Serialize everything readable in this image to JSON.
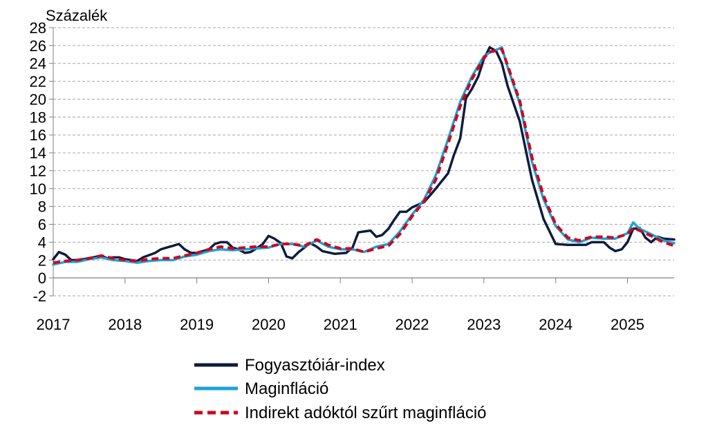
{
  "chart_data": {
    "type": "line",
    "ylabel": "Százalék",
    "ylim": [
      -2,
      28
    ],
    "yticks": [
      -2,
      0,
      2,
      4,
      6,
      8,
      10,
      12,
      14,
      16,
      18,
      20,
      22,
      24,
      26,
      28
    ],
    "xlim": [
      2017.0,
      2025.65
    ],
    "xticks": [
      "2017",
      "2018",
      "2019",
      "2020",
      "2021",
      "2022",
      "2023",
      "2024",
      "2025"
    ],
    "grid": true,
    "legend_position": "bottom",
    "colors": {
      "cpi": "#0d1c3d",
      "core": "#1aa3db",
      "core_tax_adjusted": "#d0021b",
      "grid": "#a6a6a6",
      "axis": "#808080"
    },
    "series": [
      {
        "key": "cpi",
        "name": "Fogyasztóiár-index",
        "style": "solid",
        "x": [
          2017.0,
          2017.08,
          2017.17,
          2017.25,
          2017.33,
          2017.5,
          2017.67,
          2017.75,
          2017.83,
          2017.92,
          2018.0,
          2018.17,
          2018.25,
          2018.42,
          2018.5,
          2018.58,
          2018.67,
          2018.75,
          2018.83,
          2018.92,
          2019.0,
          2019.17,
          2019.25,
          2019.33,
          2019.42,
          2019.5,
          2019.58,
          2019.67,
          2019.75,
          2019.83,
          2019.92,
          2020.0,
          2020.08,
          2020.17,
          2020.25,
          2020.33,
          2020.42,
          2020.58,
          2020.67,
          2020.75,
          2020.92,
          2021.08,
          2021.17,
          2021.25,
          2021.33,
          2021.42,
          2021.5,
          2021.58,
          2021.67,
          2021.75,
          2021.83,
          2021.92,
          2022.0,
          2022.17,
          2022.33,
          2022.5,
          2022.58,
          2022.67,
          2022.75,
          2022.83,
          2022.92,
          2023.0,
          2023.08,
          2023.17,
          2023.25,
          2023.33,
          2023.5,
          2023.67,
          2023.83,
          2024.0,
          2024.17,
          2024.33,
          2024.42,
          2024.5,
          2024.67,
          2024.75,
          2024.83,
          2024.92,
          2025.0,
          2025.08,
          2025.17,
          2025.25,
          2025.33,
          2025.42,
          2025.5,
          2025.65
        ],
        "values": [
          2.1,
          2.9,
          2.6,
          2.0,
          2.0,
          2.2,
          2.5,
          2.2,
          2.3,
          2.3,
          2.1,
          1.9,
          2.3,
          2.8,
          3.2,
          3.4,
          3.6,
          3.8,
          3.2,
          2.8,
          2.8,
          3.2,
          3.8,
          4.0,
          4.0,
          3.4,
          3.2,
          2.8,
          2.9,
          3.3,
          3.8,
          4.7,
          4.4,
          3.9,
          2.4,
          2.2,
          2.9,
          3.9,
          3.5,
          3.0,
          2.7,
          2.8,
          3.4,
          5.1,
          5.2,
          5.3,
          4.6,
          4.8,
          5.5,
          6.5,
          7.4,
          7.4,
          7.9,
          8.5,
          10.0,
          11.7,
          13.7,
          15.6,
          20.1,
          21.1,
          22.5,
          24.5,
          25.8,
          25.4,
          24.0,
          21.5,
          17.5,
          11.0,
          6.6,
          3.8,
          3.7,
          3.7,
          3.7,
          4.0,
          4.0,
          3.4,
          3.0,
          3.2,
          4.0,
          5.5,
          5.6,
          4.5,
          4.0,
          4.6,
          4.4,
          4.3
        ]
      },
      {
        "key": "core",
        "name": "Maginfláció",
        "style": "solid",
        "x": [
          2017.0,
          2017.17,
          2017.33,
          2017.5,
          2017.67,
          2017.83,
          2018.0,
          2018.17,
          2018.33,
          2018.5,
          2018.67,
          2018.83,
          2019.0,
          2019.17,
          2019.33,
          2019.5,
          2019.67,
          2019.83,
          2020.0,
          2020.17,
          2020.33,
          2020.5,
          2020.67,
          2020.83,
          2021.0,
          2021.17,
          2021.33,
          2021.5,
          2021.67,
          2021.83,
          2022.0,
          2022.17,
          2022.33,
          2022.5,
          2022.67,
          2022.83,
          2023.0,
          2023.08,
          2023.17,
          2023.25,
          2023.33,
          2023.5,
          2023.67,
          2023.83,
          2024.0,
          2024.17,
          2024.33,
          2024.5,
          2024.67,
          2024.83,
          2025.0,
          2025.08,
          2025.17,
          2025.33,
          2025.5,
          2025.65
        ],
        "values": [
          1.5,
          1.8,
          1.8,
          2.1,
          2.3,
          2.0,
          1.9,
          1.7,
          1.9,
          2.0,
          2.0,
          2.4,
          2.6,
          3.0,
          3.2,
          3.1,
          3.2,
          3.3,
          3.4,
          3.8,
          3.8,
          3.5,
          4.2,
          3.5,
          3.2,
          3.2,
          2.9,
          3.5,
          3.8,
          5.2,
          7.1,
          8.8,
          11.5,
          15.5,
          19.7,
          22.5,
          24.8,
          25.2,
          25.5,
          25.8,
          23.6,
          19.5,
          13.0,
          8.8,
          5.8,
          4.3,
          4.0,
          4.5,
          4.4,
          4.4,
          5.0,
          6.2,
          5.5,
          4.9,
          4.2,
          3.9
        ]
      },
      {
        "key": "core_tax_adjusted",
        "name": "Indirekt adóktól szűrt maginfláció",
        "style": "dashed",
        "x": [
          2017.0,
          2017.17,
          2017.33,
          2017.5,
          2017.67,
          2017.83,
          2018.0,
          2018.17,
          2018.33,
          2018.5,
          2018.67,
          2018.83,
          2019.0,
          2019.17,
          2019.33,
          2019.5,
          2019.67,
          2019.83,
          2020.0,
          2020.17,
          2020.33,
          2020.5,
          2020.67,
          2020.83,
          2021.0,
          2021.17,
          2021.33,
          2021.5,
          2021.67,
          2021.83,
          2022.0,
          2022.17,
          2022.33,
          2022.5,
          2022.67,
          2022.83,
          2023.0,
          2023.08,
          2023.17,
          2023.25,
          2023.33,
          2023.5,
          2023.67,
          2023.83,
          2024.0,
          2024.17,
          2024.33,
          2024.5,
          2024.67,
          2024.83,
          2025.0,
          2025.08,
          2025.17,
          2025.33,
          2025.5,
          2025.65
        ],
        "values": [
          1.7,
          1.9,
          2.0,
          2.2,
          2.5,
          2.2,
          2.0,
          1.9,
          2.1,
          2.2,
          2.2,
          2.5,
          2.8,
          3.2,
          3.5,
          3.3,
          3.4,
          3.5,
          3.5,
          3.8,
          3.8,
          3.6,
          4.3,
          3.7,
          3.3,
          3.3,
          2.9,
          3.3,
          3.6,
          4.9,
          6.9,
          8.6,
          11.0,
          15.0,
          19.2,
          22.2,
          24.6,
          25.3,
          25.4,
          25.6,
          23.8,
          19.8,
          13.5,
          9.2,
          6.0,
          4.5,
          4.2,
          4.6,
          4.6,
          4.5,
          4.9,
          5.6,
          5.3,
          4.7,
          4.0,
          3.6
        ]
      }
    ]
  }
}
